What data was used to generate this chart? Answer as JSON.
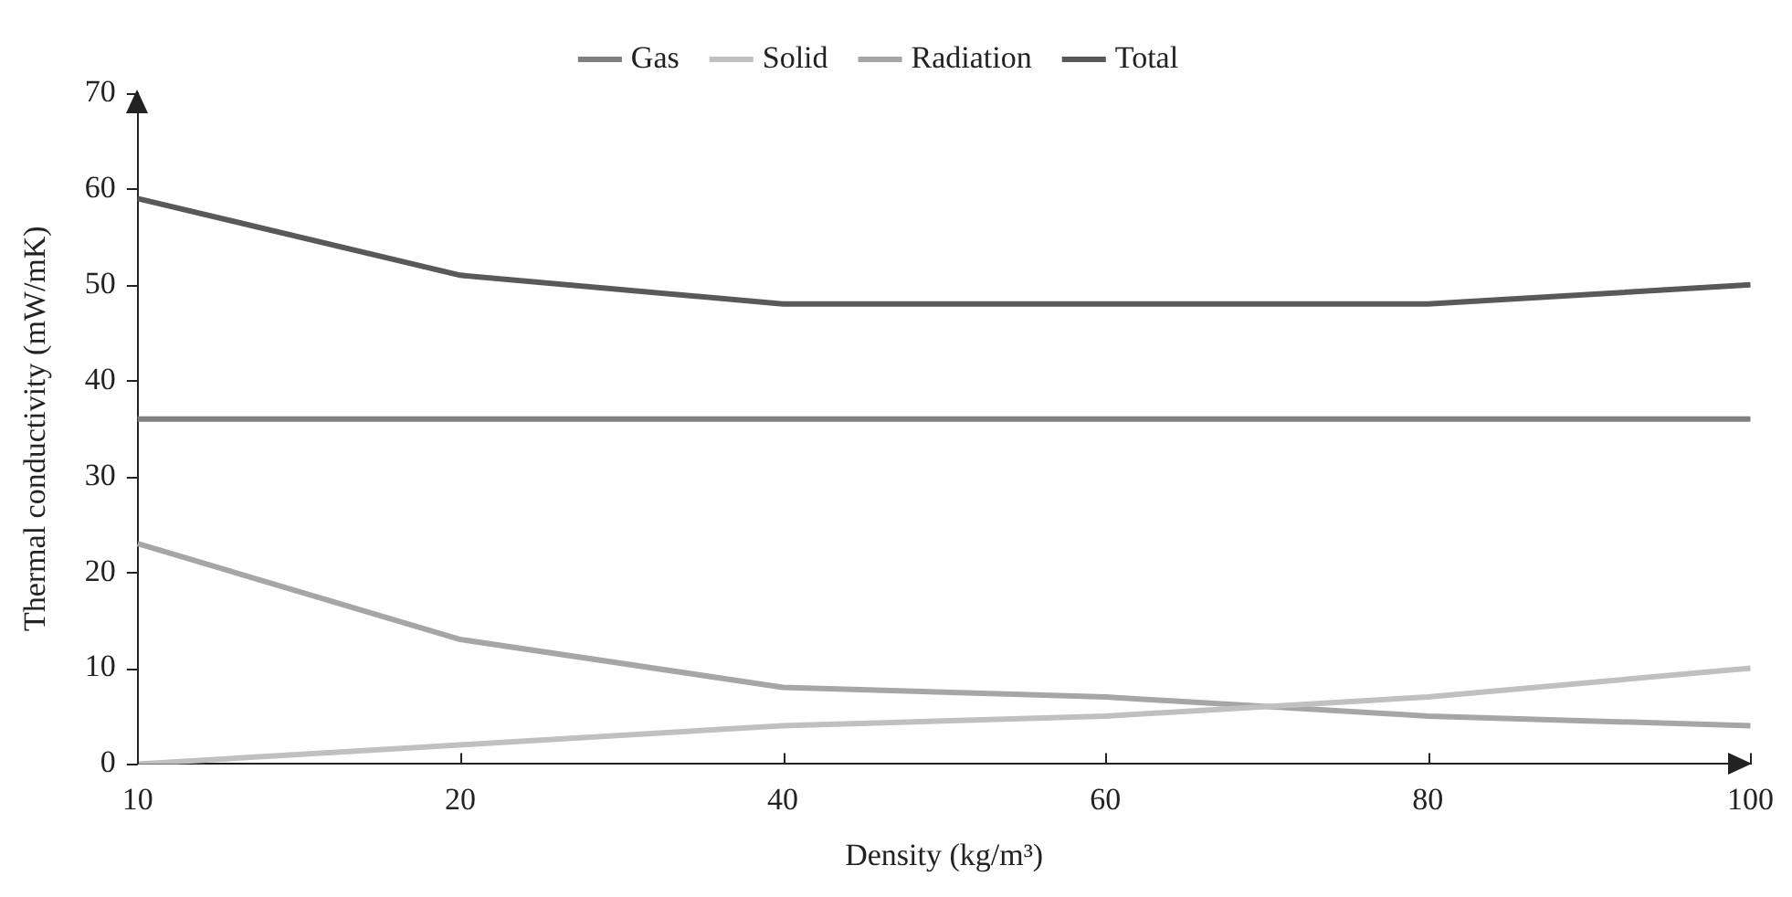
{
  "chart_data": {
    "type": "line",
    "xlabel": "Density (kg/m³)",
    "ylabel": "Thermal conductivity (mW/mK)",
    "categories": [
      "10",
      "20",
      "40",
      "60",
      "80",
      "100"
    ],
    "series": [
      {
        "name": "Gas",
        "color": "#808080",
        "values": [
          36,
          36,
          36,
          36,
          36,
          36
        ]
      },
      {
        "name": "Solid",
        "color": "#c0c0c0",
        "values": [
          0,
          2,
          4,
          5,
          7,
          10
        ]
      },
      {
        "name": "Radiation",
        "color": "#a6a6a6",
        "values": [
          23,
          13,
          8,
          7,
          5,
          4
        ]
      },
      {
        "name": "Total",
        "color": "#595959",
        "values": [
          59,
          51,
          48,
          48,
          48,
          50
        ]
      }
    ],
    "ylim": [
      0,
      70
    ],
    "yticks": [
      0,
      10,
      20,
      30,
      40,
      50,
      60,
      70
    ],
    "grid": false,
    "legend": "top",
    "marker": "none",
    "line_style": "solid"
  }
}
